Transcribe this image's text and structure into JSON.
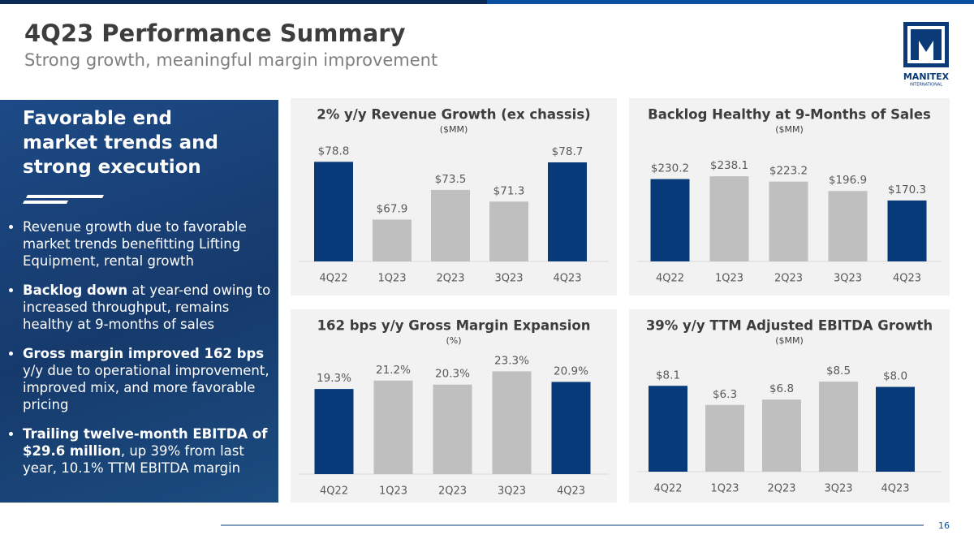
{
  "header": {
    "title": "4Q23 Performance Summary",
    "subtitle": "Strong growth, meaningful margin improvement"
  },
  "logo": {
    "name": "MANITEX",
    "tagline": "INTERNATIONAL"
  },
  "sidebar": {
    "heading": "Favorable end market trends and strong execution",
    "bullets": [
      {
        "text": "Revenue growth due to favorable market trends benefitting Lifting Equipment, rental growth"
      },
      {
        "bold": "Backlog down",
        "text": " at year-end owing to increased throughput, remains healthy at 9-months of sales"
      },
      {
        "bold": "Gross margin improved 162 bps",
        "text": " y/y due to operational improvement, improved mix, and more favorable pricing"
      },
      {
        "bold": "Trailing twelve-month EBITDA of $29.6 million",
        "text": ", up 39% from last year, 10.1% TTM EBITDA margin"
      }
    ]
  },
  "page_number": "16",
  "chart_data": [
    {
      "type": "bar",
      "title": "2% y/y Revenue Growth (ex chassis)",
      "subtitle": "($MM)",
      "categories": [
        "4Q22",
        "1Q23",
        "2Q23",
        "3Q23",
        "4Q23"
      ],
      "values": [
        78.8,
        67.9,
        73.5,
        71.3,
        78.7
      ],
      "value_labels": [
        "$78.8",
        "$67.9",
        "$73.5",
        "$71.3",
        "$78.7"
      ],
      "colors": [
        "#073a78",
        "#bfbfbf",
        "#bfbfbf",
        "#bfbfbf",
        "#073a78"
      ],
      "ylim": [
        60,
        81
      ]
    },
    {
      "type": "bar",
      "title": "Backlog Healthy at 9-Months of Sales",
      "subtitle": "($MM)",
      "categories": [
        "4Q22",
        "1Q23",
        "2Q23",
        "3Q23",
        "4Q23"
      ],
      "values": [
        230.2,
        238.1,
        223.2,
        196.9,
        170.3
      ],
      "value_labels": [
        "$230.2",
        "$238.1",
        "$223.2",
        "$196.9",
        "$170.3"
      ],
      "colors": [
        "#073a78",
        "#bfbfbf",
        "#bfbfbf",
        "#bfbfbf",
        "#073a78"
      ],
      "ylim": [
        0,
        320
      ]
    },
    {
      "type": "bar",
      "title": "162 bps y/y Gross Margin Expansion",
      "subtitle": "(%)",
      "categories": [
        "4Q22",
        "1Q23",
        "2Q23",
        "3Q23",
        "4Q23"
      ],
      "values": [
        19.3,
        21.2,
        20.3,
        23.3,
        20.9
      ],
      "value_labels": [
        "19.3%",
        "21.2%",
        "20.3%",
        "23.3%",
        "20.9%"
      ],
      "colors": [
        "#073a78",
        "#bfbfbf",
        "#bfbfbf",
        "#bfbfbf",
        "#073a78"
      ],
      "ylim": [
        0,
        26.5
      ]
    },
    {
      "type": "bar",
      "title": "39% y/y TTM Adjusted EBITDA Growth",
      "subtitle": "($MM)",
      "categories": [
        "4Q22",
        "1Q23",
        "2Q23",
        "3Q23",
        "4Q23"
      ],
      "values": [
        8.1,
        6.3,
        6.8,
        8.5,
        8.0
      ],
      "value_labels": [
        "$8.1",
        "$6.3",
        "$6.8",
        "$8.5",
        "$8.0"
      ],
      "colors": [
        "#073a78",
        "#bfbfbf",
        "#bfbfbf",
        "#bfbfbf",
        "#073a78"
      ],
      "ylim": [
        0,
        10.8
      ]
    }
  ]
}
